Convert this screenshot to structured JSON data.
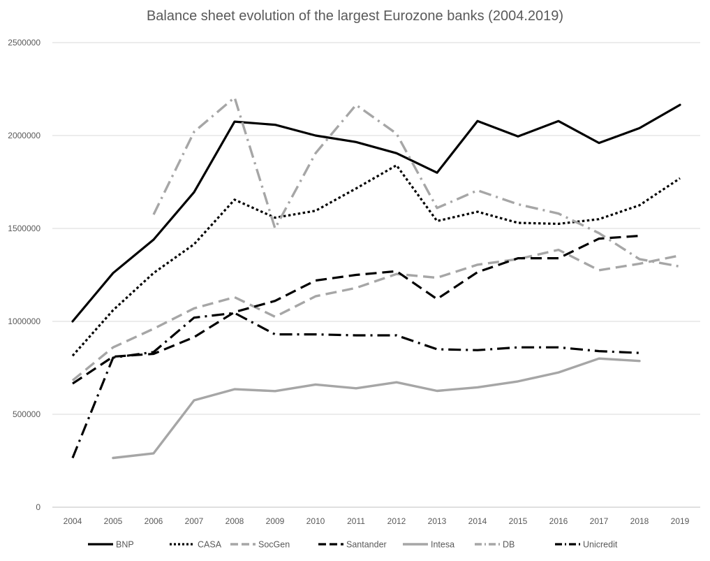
{
  "chart_data": {
    "type": "line",
    "title": "Balance sheet evolution of the largest Eurozone banks (2004.2019)",
    "xlabel": "",
    "ylabel": "",
    "x": [
      "2004",
      "2005",
      "2006",
      "2007",
      "2008",
      "2009",
      "2010",
      "2011",
      "2012",
      "2013",
      "2014",
      "2015",
      "2016",
      "2017",
      "2018",
      "2019"
    ],
    "ylim": [
      0,
      2500000
    ],
    "yticks": [
      "0",
      "500000",
      "1000000",
      "1500000",
      "2000000",
      "2500000"
    ],
    "grid": true,
    "legend_position": "bottom",
    "series": [
      {
        "name": "BNP",
        "color": "#000000",
        "dash": "solid",
        "values": [
          1000000,
          1260000,
          1440000,
          1695000,
          2075000,
          2058000,
          2000000,
          1965000,
          1905000,
          1800000,
          2078000,
          1995000,
          2078000,
          1960000,
          2040000,
          2165000
        ]
      },
      {
        "name": "CASA",
        "color": "#000000",
        "dash": "dotted",
        "values": [
          815000,
          1060000,
          1260000,
          1415000,
          1655000,
          1558000,
          1595000,
          1715000,
          1840000,
          1540000,
          1590000,
          1530000,
          1525000,
          1550000,
          1625000,
          1770000
        ]
      },
      {
        "name": "SocGen",
        "color": "#a6a6a6",
        "dash": "dash",
        "values": [
          682000,
          860000,
          960000,
          1070000,
          1130000,
          1025000,
          1135000,
          1180000,
          1255000,
          1235000,
          1305000,
          1335000,
          1385000,
          1275000,
          1310000,
          1355000
        ]
      },
      {
        "name": "Santander",
        "color": "#000000",
        "dash": "dash",
        "values": [
          665000,
          810000,
          825000,
          915000,
          1050000,
          1110000,
          1220000,
          1250000,
          1270000,
          1120000,
          1265000,
          1340000,
          1340000,
          1445000,
          1460000,
          null
        ]
      },
      {
        "name": "Intesa",
        "color": "#a6a6a6",
        "dash": "solid",
        "values": [
          null,
          265000,
          290000,
          575000,
          635000,
          625000,
          660000,
          640000,
          672000,
          626000,
          645000,
          677000,
          725000,
          800000,
          787000,
          null
        ]
      },
      {
        "name": "DB",
        "color": "#a6a6a6",
        "dash": "dashdot",
        "values": [
          null,
          null,
          1575000,
          2020000,
          2205000,
          1500000,
          1905000,
          2165000,
          2010000,
          1610000,
          1705000,
          1630000,
          1580000,
          1475000,
          1335000,
          1295000
        ]
      },
      {
        "name": "Unicredit",
        "color": "#000000",
        "dash": "dashdot",
        "values": [
          265000,
          805000,
          835000,
          1020000,
          1045000,
          930000,
          930000,
          925000,
          925000,
          850000,
          845000,
          860000,
          860000,
          840000,
          830000,
          null
        ]
      }
    ]
  }
}
